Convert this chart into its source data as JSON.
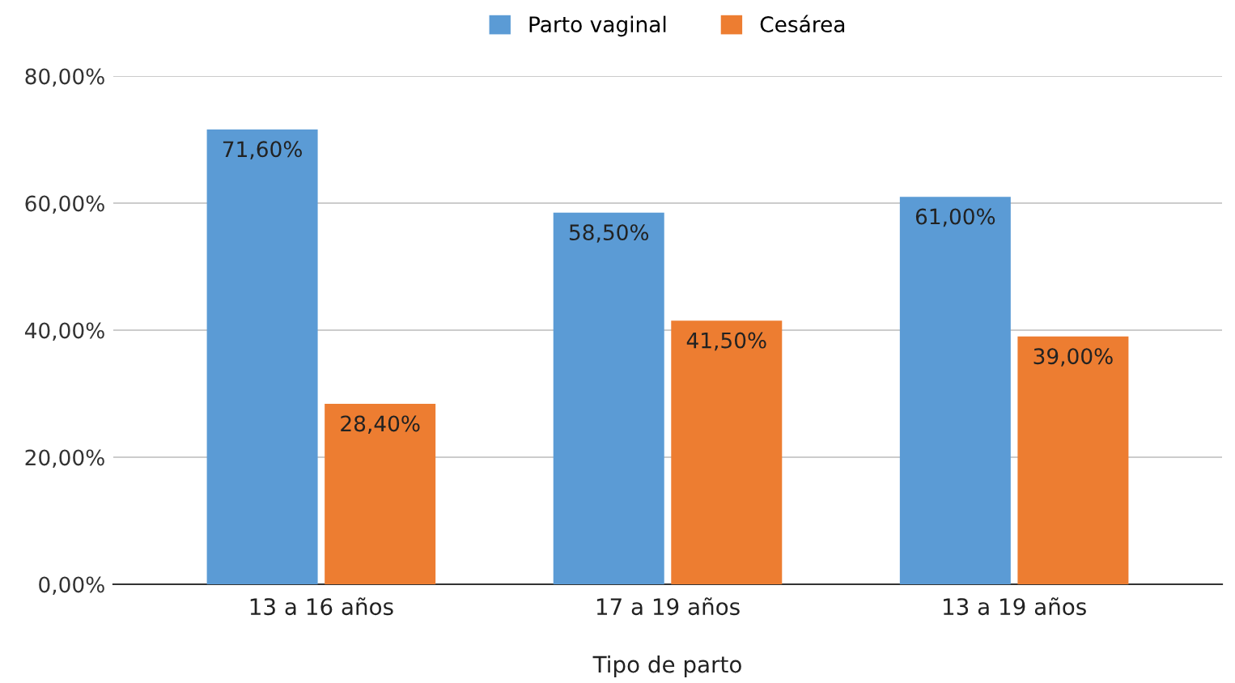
{
  "chart_data": {
    "type": "bar",
    "xlabel": "Tipo de parto",
    "categories": [
      "13 a 16 años",
      "17 a 19 años",
      "13 a 19 años"
    ],
    "series": [
      {
        "name": "Parto vaginal",
        "color": "#5b9bd5",
        "values": [
          71.6,
          58.5,
          61.0
        ],
        "value_labels": [
          "71,60%",
          "58,50%",
          "61,00%"
        ]
      },
      {
        "name": "Cesárea",
        "color": "#ed7d31",
        "values": [
          28.4,
          41.5,
          39.0
        ],
        "value_labels": [
          "28,40%",
          "41,50%",
          "39,00%"
        ]
      }
    ],
    "ylim": [
      0,
      80
    ],
    "yticks": [
      {
        "value": 0,
        "label": "0,00%"
      },
      {
        "value": 20,
        "label": "20,00%"
      },
      {
        "value": 40,
        "label": "40,00%"
      },
      {
        "value": 60,
        "label": "60,00%"
      },
      {
        "value": 80,
        "label": "80,00%"
      }
    ],
    "grid": "y",
    "legend": "top"
  }
}
